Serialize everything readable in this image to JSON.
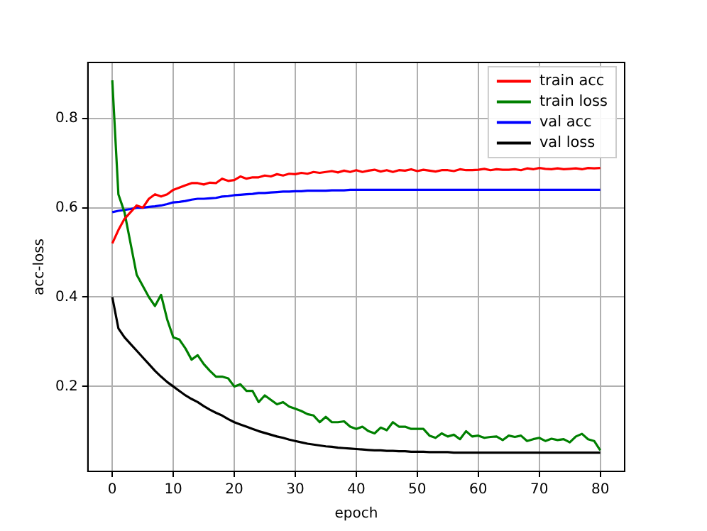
{
  "chart_data": {
    "type": "line",
    "xlabel": "epoch",
    "ylabel": "acc-loss",
    "x": [
      0,
      1,
      2,
      3,
      4,
      5,
      6,
      7,
      8,
      9,
      10,
      11,
      12,
      13,
      14,
      15,
      16,
      17,
      18,
      19,
      20,
      21,
      22,
      23,
      24,
      25,
      26,
      27,
      28,
      29,
      30,
      31,
      32,
      33,
      34,
      35,
      36,
      37,
      38,
      39,
      40,
      41,
      42,
      43,
      44,
      45,
      46,
      47,
      48,
      49,
      50,
      51,
      52,
      53,
      54,
      55,
      56,
      57,
      58,
      59,
      60,
      61,
      62,
      63,
      64,
      65,
      66,
      67,
      68,
      69,
      70,
      71,
      72,
      73,
      74,
      75,
      76,
      77,
      78,
      79,
      80
    ],
    "series": [
      {
        "name": "train acc",
        "color": "#ff0000",
        "values": [
          0.52,
          0.55,
          0.575,
          0.59,
          0.605,
          0.6,
          0.62,
          0.63,
          0.625,
          0.63,
          0.64,
          0.645,
          0.65,
          0.655,
          0.655,
          0.652,
          0.656,
          0.655,
          0.665,
          0.66,
          0.662,
          0.67,
          0.665,
          0.668,
          0.668,
          0.672,
          0.67,
          0.675,
          0.672,
          0.676,
          0.675,
          0.678,
          0.676,
          0.68,
          0.678,
          0.68,
          0.682,
          0.679,
          0.683,
          0.68,
          0.684,
          0.68,
          0.683,
          0.685,
          0.681,
          0.684,
          0.68,
          0.684,
          0.683,
          0.686,
          0.682,
          0.685,
          0.683,
          0.681,
          0.684,
          0.684,
          0.682,
          0.686,
          0.684,
          0.684,
          0.685,
          0.687,
          0.684,
          0.686,
          0.685,
          0.685,
          0.686,
          0.684,
          0.688,
          0.686,
          0.689,
          0.687,
          0.686,
          0.688,
          0.686,
          0.687,
          0.688,
          0.686,
          0.689,
          0.688,
          0.689
        ]
      },
      {
        "name": "train loss",
        "color": "#008000",
        "values": [
          0.885,
          0.63,
          0.59,
          0.52,
          0.45,
          0.425,
          0.4,
          0.38,
          0.405,
          0.35,
          0.31,
          0.305,
          0.285,
          0.26,
          0.27,
          0.25,
          0.235,
          0.222,
          0.222,
          0.218,
          0.2,
          0.205,
          0.19,
          0.19,
          0.165,
          0.18,
          0.17,
          0.16,
          0.165,
          0.155,
          0.15,
          0.145,
          0.138,
          0.135,
          0.12,
          0.132,
          0.12,
          0.12,
          0.122,
          0.11,
          0.105,
          0.11,
          0.1,
          0.095,
          0.108,
          0.102,
          0.12,
          0.11,
          0.11,
          0.105,
          0.105,
          0.105,
          0.09,
          0.085,
          0.095,
          0.088,
          0.092,
          0.082,
          0.1,
          0.088,
          0.09,
          0.085,
          0.087,
          0.088,
          0.08,
          0.09,
          0.087,
          0.09,
          0.078,
          0.082,
          0.085,
          0.078,
          0.083,
          0.08,
          0.082,
          0.075,
          0.088,
          0.094,
          0.082,
          0.078,
          0.057
        ]
      },
      {
        "name": "val acc",
        "color": "#0000ff",
        "values": [
          0.59,
          0.593,
          0.595,
          0.597,
          0.6,
          0.6,
          0.602,
          0.603,
          0.605,
          0.608,
          0.612,
          0.613,
          0.615,
          0.618,
          0.62,
          0.62,
          0.621,
          0.622,
          0.625,
          0.626,
          0.628,
          0.629,
          0.63,
          0.631,
          0.633,
          0.633,
          0.634,
          0.635,
          0.636,
          0.636,
          0.637,
          0.637,
          0.638,
          0.638,
          0.638,
          0.638,
          0.639,
          0.639,
          0.639,
          0.64,
          0.64,
          0.64,
          0.64,
          0.64,
          0.64,
          0.64,
          0.64,
          0.64,
          0.64,
          0.64,
          0.64,
          0.64,
          0.64,
          0.64,
          0.64,
          0.64,
          0.64,
          0.64,
          0.64,
          0.64,
          0.64,
          0.64,
          0.64,
          0.64,
          0.64,
          0.64,
          0.64,
          0.64,
          0.64,
          0.64,
          0.64,
          0.64,
          0.64,
          0.64,
          0.64,
          0.64,
          0.64,
          0.64,
          0.64,
          0.64,
          0.64
        ]
      },
      {
        "name": "val loss",
        "color": "#000000",
        "values": [
          0.4,
          0.33,
          0.31,
          0.295,
          0.28,
          0.265,
          0.25,
          0.235,
          0.222,
          0.21,
          0.2,
          0.19,
          0.18,
          0.172,
          0.165,
          0.156,
          0.148,
          0.141,
          0.135,
          0.127,
          0.12,
          0.115,
          0.11,
          0.105,
          0.1,
          0.096,
          0.092,
          0.088,
          0.085,
          0.081,
          0.078,
          0.075,
          0.072,
          0.07,
          0.068,
          0.066,
          0.065,
          0.063,
          0.062,
          0.061,
          0.06,
          0.059,
          0.058,
          0.057,
          0.057,
          0.056,
          0.056,
          0.055,
          0.055,
          0.054,
          0.054,
          0.054,
          0.053,
          0.053,
          0.053,
          0.053,
          0.052,
          0.052,
          0.052,
          0.052,
          0.052,
          0.052,
          0.052,
          0.052,
          0.052,
          0.052,
          0.052,
          0.052,
          0.052,
          0.052,
          0.052,
          0.052,
          0.052,
          0.052,
          0.052,
          0.052,
          0.052,
          0.052,
          0.052,
          0.052,
          0.052
        ]
      }
    ],
    "xlim": [
      -4,
      84
    ],
    "xticks": [
      0,
      10,
      20,
      30,
      40,
      50,
      60,
      70,
      80
    ],
    "ylim": [
      0.01,
      0.925
    ],
    "yticks": [
      0.2,
      0.4,
      0.6,
      0.8
    ],
    "grid": true,
    "legend": "top right",
    "marker": "none",
    "line_style": "solid"
  }
}
